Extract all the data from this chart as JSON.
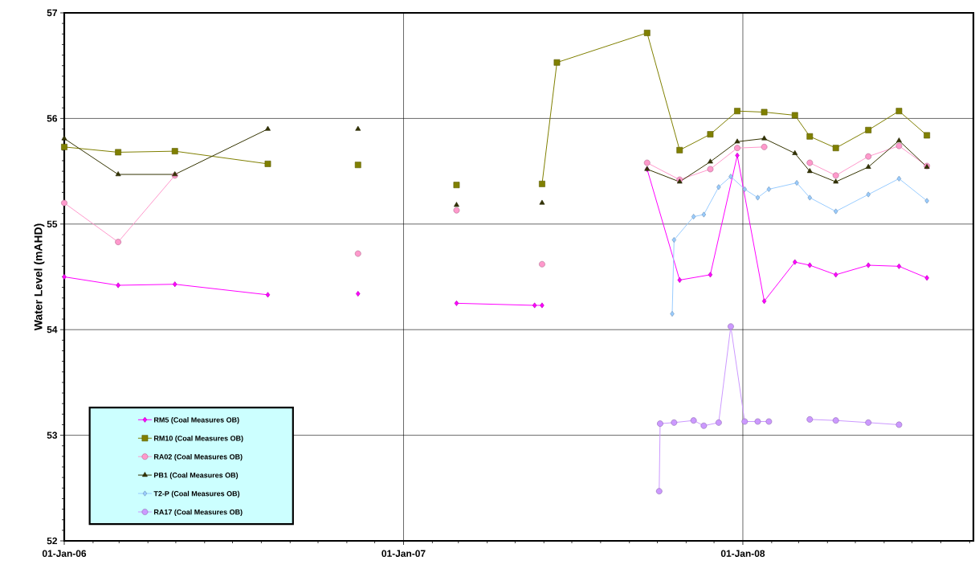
{
  "chart_data": {
    "type": "line",
    "ylabel": "Water Level (mAHD)",
    "xlim": [
      "2006-01-01",
      "2008-09-05"
    ],
    "ylim": [
      52,
      57
    ],
    "xticks": [
      {
        "value": "2006-01-01",
        "label": "01-Jan-06"
      },
      {
        "value": "2006-02-01",
        "label": null
      },
      {
        "value": "2006-03-01",
        "label": null
      },
      {
        "value": "2006-04-01",
        "label": null
      },
      {
        "value": "2006-05-01",
        "label": null
      },
      {
        "value": "2006-06-01",
        "label": null
      },
      {
        "value": "2006-07-01",
        "label": null
      },
      {
        "value": "2006-08-01",
        "label": null
      },
      {
        "value": "2006-09-01",
        "label": null
      },
      {
        "value": "2006-10-01",
        "label": null
      },
      {
        "value": "2006-11-01",
        "label": null
      },
      {
        "value": "2006-12-01",
        "label": null
      },
      {
        "value": "2007-01-01",
        "label": "01-Jan-07"
      },
      {
        "value": "2007-02-01",
        "label": null
      },
      {
        "value": "2007-03-01",
        "label": null
      },
      {
        "value": "2007-04-01",
        "label": null
      },
      {
        "value": "2007-05-01",
        "label": null
      },
      {
        "value": "2007-06-01",
        "label": null
      },
      {
        "value": "2007-07-01",
        "label": null
      },
      {
        "value": "2007-08-01",
        "label": null
      },
      {
        "value": "2007-09-01",
        "label": null
      },
      {
        "value": "2007-10-01",
        "label": null
      },
      {
        "value": "2007-11-01",
        "label": null
      },
      {
        "value": "2007-12-01",
        "label": null
      },
      {
        "value": "2008-01-01",
        "label": "01-Jan-08"
      },
      {
        "value": "2008-02-01",
        "label": null
      },
      {
        "value": "2008-03-01",
        "label": null
      },
      {
        "value": "2008-04-01",
        "label": null
      },
      {
        "value": "2008-05-01",
        "label": null
      },
      {
        "value": "2008-06-01",
        "label": null
      },
      {
        "value": "2008-07-01",
        "label": null
      },
      {
        "value": "2008-08-01",
        "label": null
      },
      {
        "value": "2008-09-01",
        "label": null
      }
    ],
    "yticks": [
      52,
      {
        "value": 52.1,
        "label": null
      },
      {
        "value": 52.2,
        "label": null
      },
      {
        "value": 52.3,
        "label": null
      },
      {
        "value": 52.4,
        "label": null
      },
      {
        "value": 52.5,
        "label": null
      },
      {
        "value": 52.6,
        "label": null
      },
      {
        "value": 52.7,
        "label": null
      },
      {
        "value": 52.8,
        "label": null
      },
      {
        "value": 52.9,
        "label": null
      },
      53,
      {
        "value": 53.1,
        "label": null
      },
      {
        "value": 53.2,
        "label": null
      },
      {
        "value": 53.3,
        "label": null
      },
      {
        "value": 53.4,
        "label": null
      },
      {
        "value": 53.5,
        "label": null
      },
      {
        "value": 53.6,
        "label": null
      },
      {
        "value": 53.7,
        "label": null
      },
      {
        "value": 53.8,
        "label": null
      },
      {
        "value": 53.9,
        "label": null
      },
      54,
      {
        "value": 54.1,
        "label": null
      },
      {
        "value": 54.2,
        "label": null
      },
      {
        "value": 54.3,
        "label": null
      },
      {
        "value": 54.4,
        "label": null
      },
      {
        "value": 54.5,
        "label": null
      },
      {
        "value": 54.6,
        "label": null
      },
      {
        "value": 54.7,
        "label": null
      },
      {
        "value": 54.8,
        "label": null
      },
      {
        "value": 54.9,
        "label": null
      },
      55,
      {
        "value": 55.1,
        "label": null
      },
      {
        "value": 55.2,
        "label": null
      },
      {
        "value": 55.3,
        "label": null
      },
      {
        "value": 55.4,
        "label": null
      },
      {
        "value": 55.5,
        "label": null
      },
      {
        "value": 55.6,
        "label": null
      },
      {
        "value": 55.7,
        "label": null
      },
      {
        "value": 55.8,
        "label": null
      },
      {
        "value": 55.9,
        "label": null
      },
      56,
      {
        "value": 56.1,
        "label": null
      },
      {
        "value": 56.2,
        "label": null
      },
      {
        "value": 56.3,
        "label": null
      },
      {
        "value": 56.4,
        "label": null
      },
      {
        "value": 56.5,
        "label": null
      },
      {
        "value": 56.6,
        "label": null
      },
      {
        "value": 56.7,
        "label": null
      },
      {
        "value": 56.8,
        "label": null
      },
      {
        "value": 56.9,
        "label": null
      },
      57
    ],
    "grid": true,
    "legend": "bottom left",
    "series": [
      {
        "name": "RM5 (Coal Measures OB)",
        "color": "#ff00ff",
        "marker": "diamond",
        "x": [
          "2006-01-01",
          "2006-02-28",
          "2006-04-30",
          "2006-08-08",
          "2006-10-01",
          "2006-11-13",
          "2007-01-01",
          "2007-02-27",
          "2007-05-22",
          "2007-05-30",
          "2007-07-15",
          "2007-09-20",
          "2007-10-25",
          "2007-11-27",
          "2007-12-26",
          "2008-01-24",
          "2008-02-26",
          "2008-03-13",
          "2008-04-10",
          "2008-05-15",
          "2008-06-17",
          "2008-07-17"
        ],
        "values": [
          54.5,
          54.42,
          54.43,
          54.33,
          null,
          54.34,
          null,
          54.25,
          54.23,
          54.23,
          null,
          55.52,
          54.47,
          54.52,
          55.65,
          54.27,
          54.64,
          54.61,
          54.52,
          54.61,
          54.6,
          54.49
        ]
      },
      {
        "name": "RM10 (Coal Measures OB)",
        "color": "#808000",
        "marker": "square",
        "x": [
          "2006-01-01",
          "2006-02-28",
          "2006-04-30",
          "2006-08-08",
          "2006-10-01",
          "2006-11-13",
          "2007-01-01",
          "2007-02-27",
          "2007-04-10",
          "2007-05-30",
          "2007-06-15",
          "2007-09-20",
          "2007-10-25",
          "2007-11-27",
          "2007-12-26",
          "2008-01-24",
          "2008-02-26",
          "2008-03-13",
          "2008-04-10",
          "2008-05-15",
          "2008-06-17",
          "2008-07-17"
        ],
        "values": [
          55.73,
          55.68,
          55.69,
          55.57,
          null,
          55.56,
          null,
          55.37,
          null,
          55.38,
          56.53,
          56.81,
          55.7,
          55.85,
          56.07,
          56.06,
          56.03,
          55.83,
          55.72,
          55.89,
          56.07,
          55.84
        ]
      },
      {
        "name": "RA02 (Coal Measures OB)",
        "color": "#ff99cc",
        "marker": "circle",
        "x": [
          "2006-01-01",
          "2006-02-28",
          "2006-04-30",
          "2006-08-08",
          "2006-11-13",
          "2007-01-01",
          "2007-02-27",
          "2007-04-10",
          "2007-05-30",
          "2007-07-15",
          "2007-09-20",
          "2007-10-25",
          "2007-11-27",
          "2007-12-26",
          "2008-01-24",
          "2008-02-26",
          "2008-03-13",
          "2008-04-10",
          "2008-05-15",
          "2008-06-17",
          "2008-07-17"
        ],
        "values": [
          55.2,
          54.83,
          55.46,
          null,
          54.72,
          null,
          55.13,
          null,
          54.62,
          null,
          55.58,
          55.42,
          55.52,
          55.72,
          55.73,
          null,
          55.58,
          55.46,
          55.64,
          55.74,
          55.55
        ]
      },
      {
        "name": "PB1 (Coal Measures OB)",
        "color": "#333300",
        "marker": "triangle",
        "x": [
          "2006-01-01",
          "2006-02-28",
          "2006-04-30",
          "2006-08-08",
          "2006-10-01",
          "2006-11-13",
          "2007-01-01",
          "2007-02-27",
          "2007-04-10",
          "2007-05-30",
          "2007-07-15",
          "2007-09-20",
          "2007-10-25",
          "2007-11-27",
          "2007-12-26",
          "2008-01-24",
          "2008-02-26",
          "2008-03-13",
          "2008-04-10",
          "2008-05-15",
          "2008-06-17",
          "2008-07-17"
        ],
        "values": [
          55.81,
          55.47,
          55.47,
          55.9,
          null,
          55.9,
          null,
          55.18,
          null,
          55.2,
          null,
          55.52,
          55.4,
          55.59,
          55.78,
          55.81,
          55.67,
          55.5,
          55.4,
          55.54,
          55.79,
          55.54
        ]
      },
      {
        "name": "T2-P (Coal Measures OB)",
        "color": "#99ccff",
        "marker": "diamond",
        "x": [
          "2007-10-17",
          "2007-10-19",
          "2007-11-09",
          "2007-11-20",
          "2007-12-06",
          "2007-12-19",
          "2008-01-03",
          "2008-01-17",
          "2008-01-29",
          "2008-02-28",
          "2008-03-13",
          "2008-04-10",
          "2008-05-15",
          "2008-06-17",
          "2008-07-17"
        ],
        "values": [
          54.15,
          54.85,
          55.07,
          55.09,
          55.35,
          55.45,
          55.33,
          55.25,
          55.33,
          55.39,
          55.25,
          55.12,
          55.28,
          55.43,
          55.22
        ]
      },
      {
        "name": "RA17 (Coal Measures OB)",
        "color": "#cc99ff",
        "marker": "circle",
        "x": [
          "2007-10-03",
          "2007-10-04",
          "2007-10-19",
          "2007-11-09",
          "2007-11-20",
          "2007-12-06",
          "2007-12-19",
          "2008-01-03",
          "2008-01-17",
          "2008-01-29",
          "2008-02-20",
          "2008-03-13",
          "2008-04-10",
          "2008-05-15",
          "2008-06-17"
        ],
        "values": [
          52.47,
          53.11,
          53.12,
          53.14,
          53.09,
          53.12,
          54.03,
          53.13,
          53.13,
          53.13,
          null,
          53.15,
          53.14,
          53.12,
          53.1
        ]
      }
    ]
  }
}
